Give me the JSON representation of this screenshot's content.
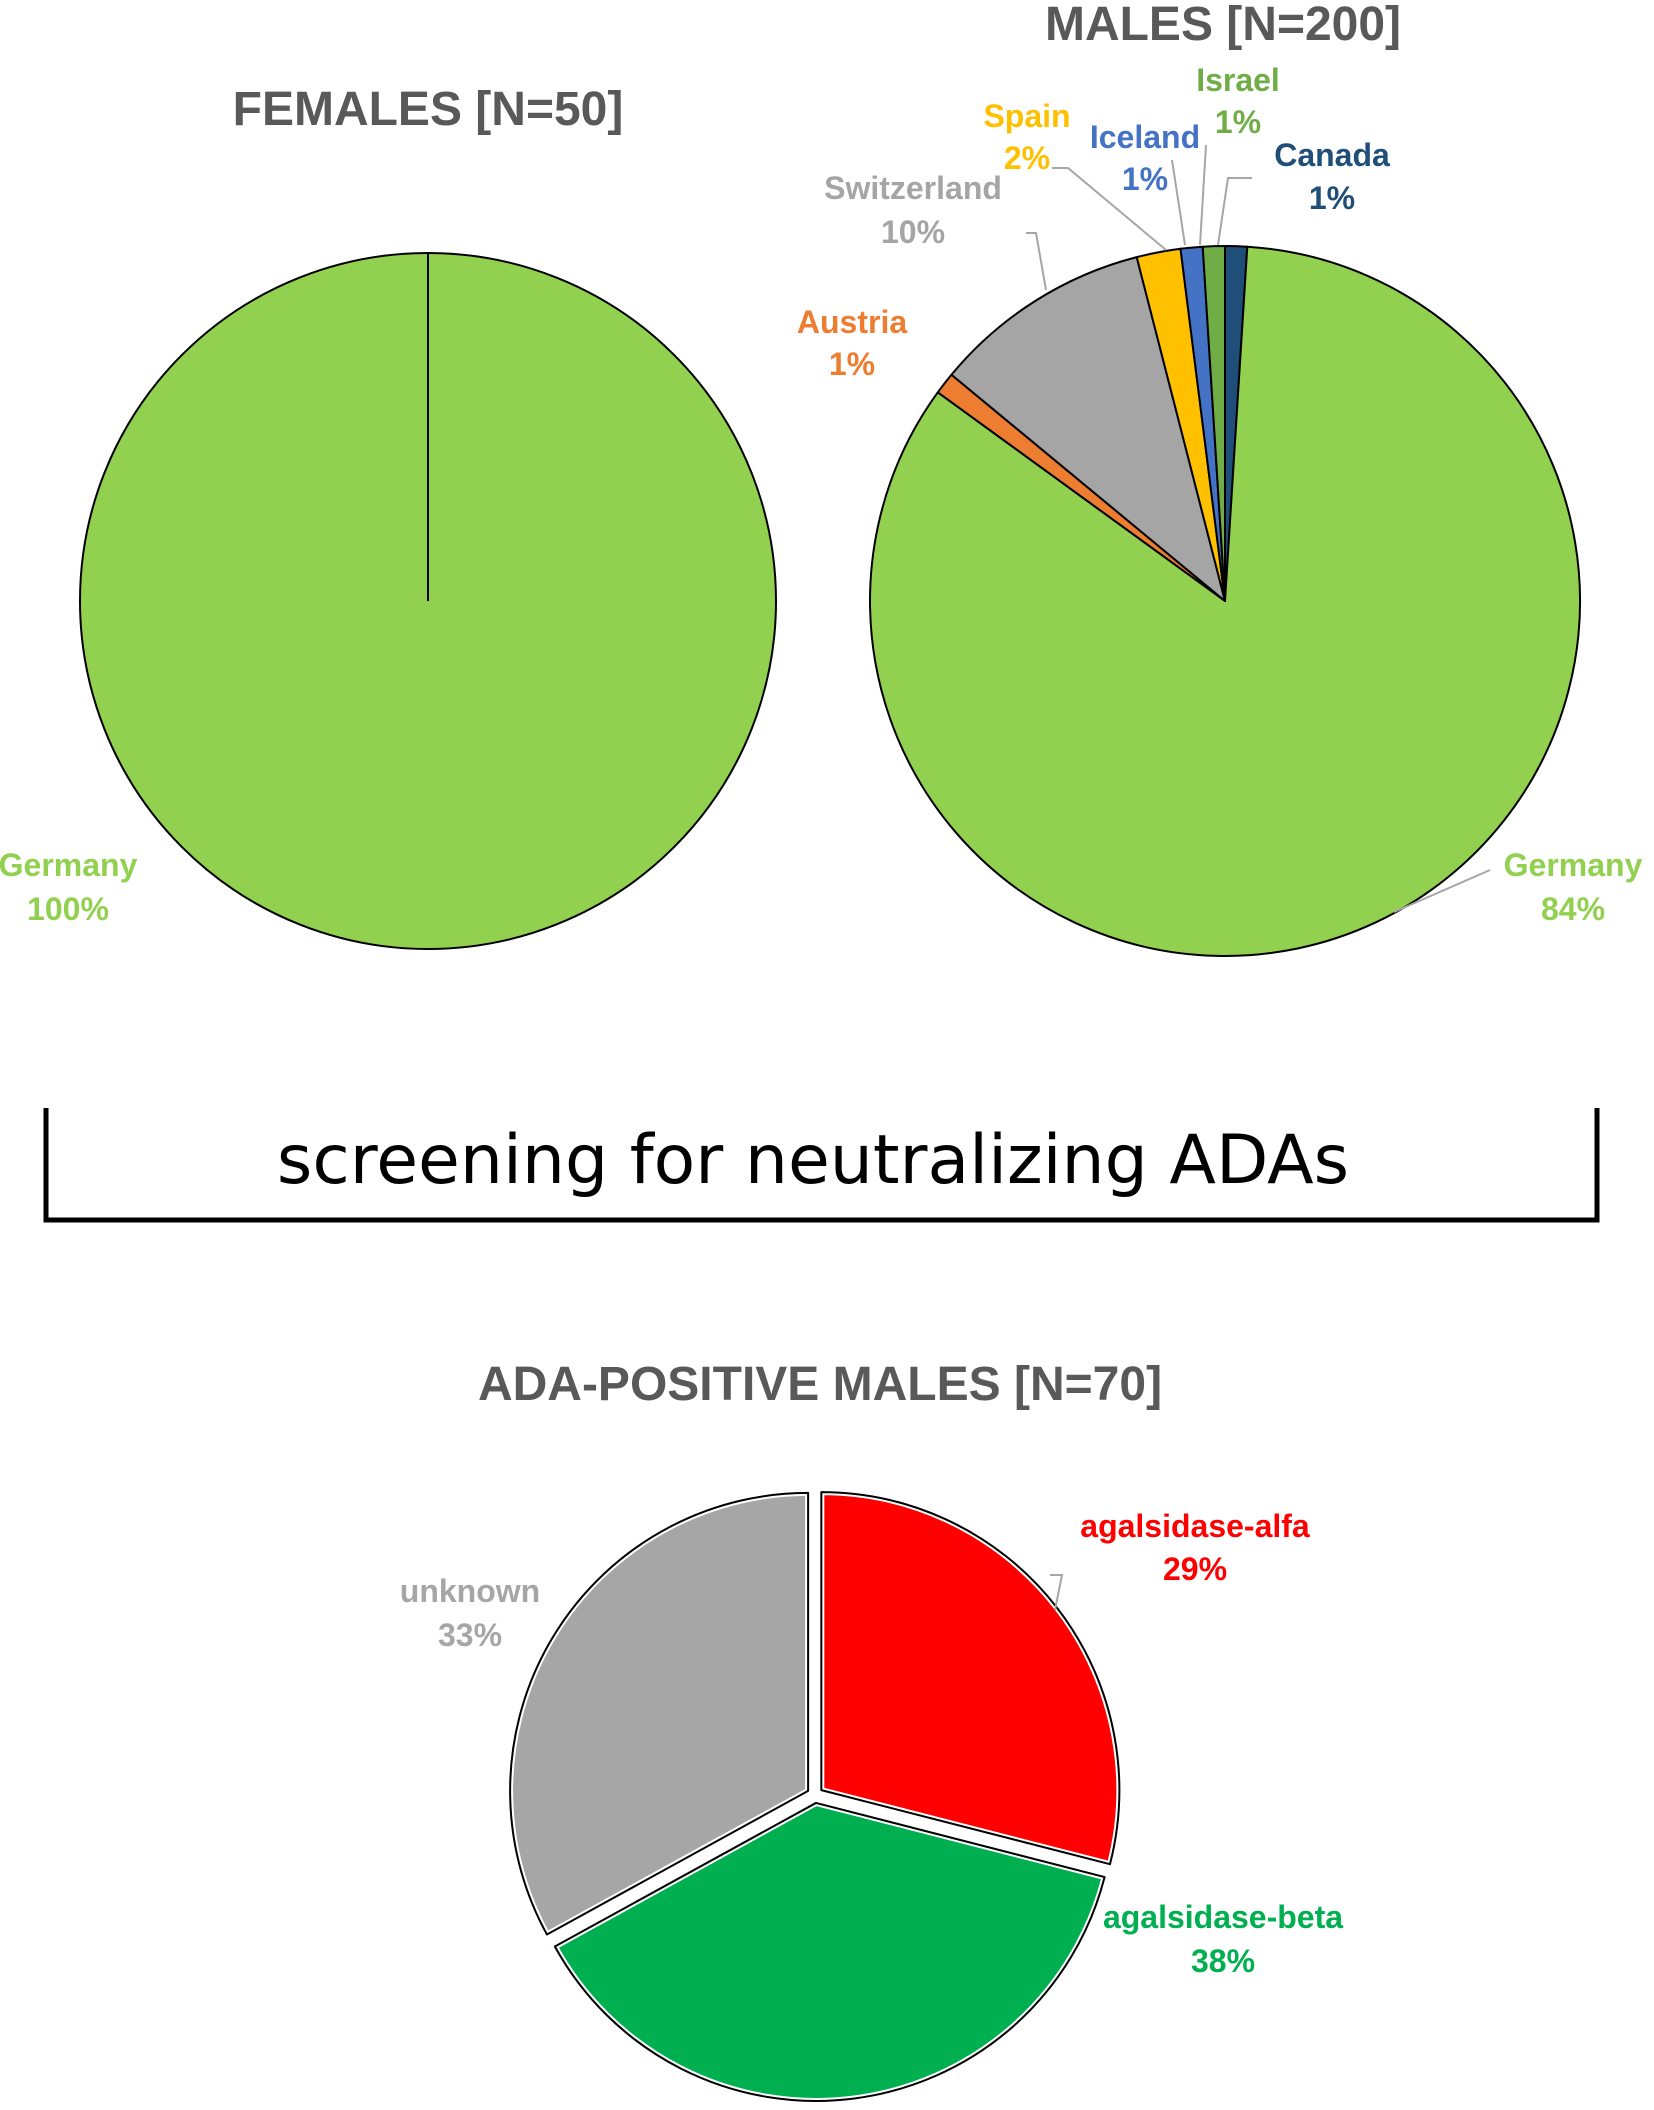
{
  "chart_data": [
    {
      "type": "pie",
      "title": "FEMALES [N=50]",
      "slices": [
        {
          "name": "Germany",
          "value": 100,
          "label": "100%",
          "color": "#92D050"
        }
      ]
    },
    {
      "type": "pie",
      "title": "MALES [N=200]",
      "slices": [
        {
          "name": "Canada",
          "value": 1,
          "label": "1%",
          "color": "#1F4E79"
        },
        {
          "name": "Germany",
          "value": 84,
          "label": "84%",
          "color": "#92D050"
        },
        {
          "name": "Austria",
          "value": 1,
          "label": "1%",
          "color": "#ED7D31"
        },
        {
          "name": "Switzerland",
          "value": 10,
          "label": "10%",
          "color": "#A5A5A5"
        },
        {
          "name": "Spain",
          "value": 2,
          "label": "2%",
          "color": "#FFC000"
        },
        {
          "name": "Iceland",
          "value": 1,
          "label": "1%",
          "color": "#4472C4"
        },
        {
          "name": "Israel",
          "value": 1,
          "label": "1%",
          "color": "#70AD47"
        }
      ]
    },
    {
      "type": "pie",
      "title": "ADA-POSITIVE MALES [N=70]",
      "slices": [
        {
          "name": "agalsidase-alfa",
          "value": 29,
          "label": "29%",
          "color": "#FF0000"
        },
        {
          "name": "agalsidase-beta",
          "value": 38,
          "label": "38%",
          "color": "#00B050"
        },
        {
          "name": "unknown",
          "value": 33,
          "label": "33%",
          "color": "#A6A6A6"
        }
      ]
    }
  ],
  "bracket": {
    "text": "screening for neutralizing ADAs"
  }
}
